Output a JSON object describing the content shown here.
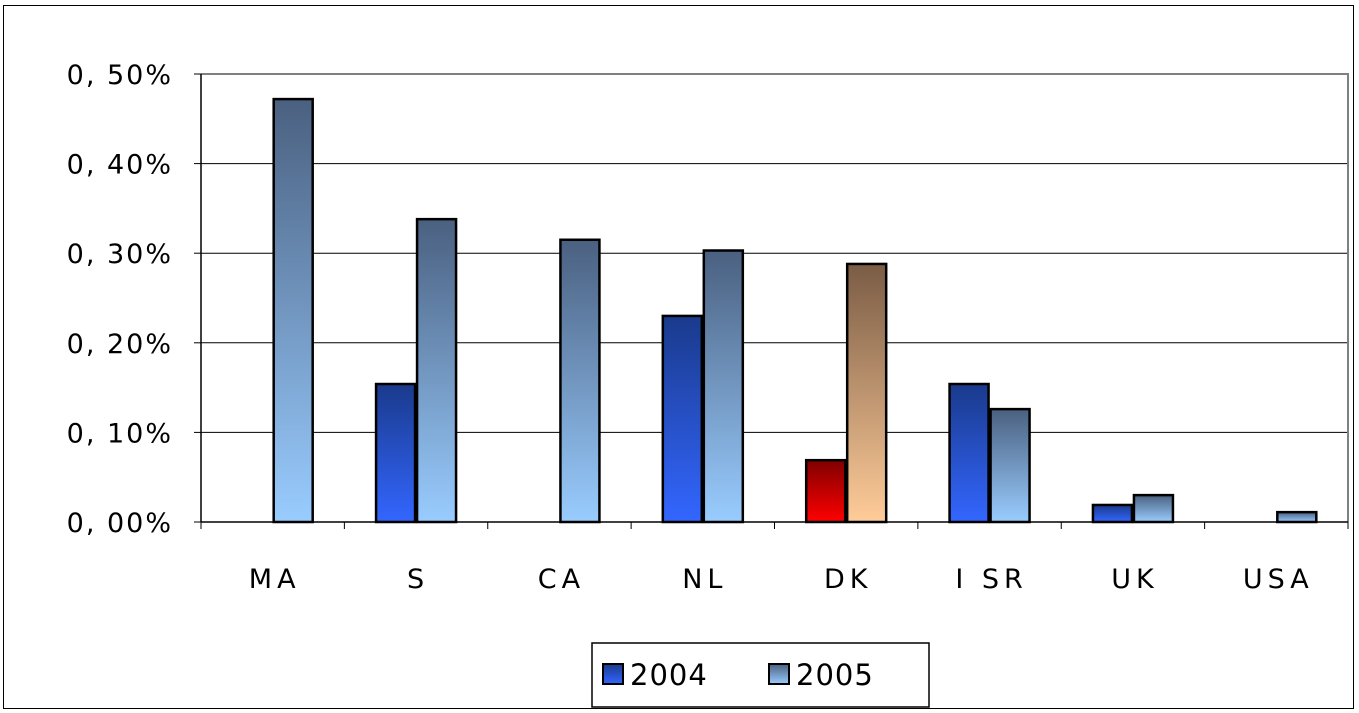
{
  "chart_data": {
    "type": "bar",
    "categories": [
      "MA",
      "S",
      "CA",
      "NL",
      "DK",
      "I SR",
      "UK",
      "USA"
    ],
    "series": [
      {
        "name": "2004",
        "values": [
          0,
          0.154,
          0,
          0.23,
          0.069,
          0.154,
          0.019,
          0
        ]
      },
      {
        "name": "2005",
        "values": [
          0.472,
          0.338,
          0.315,
          0.303,
          0.288,
          0.126,
          0.03,
          0.011
        ]
      }
    ],
    "highlight": {
      "category": "DK",
      "colors": [
        "#e00000",
        "#f7c69a"
      ]
    },
    "ylim": [
      0,
      0.5
    ],
    "yticks": [
      0,
      0.1,
      0.2,
      0.3,
      0.4,
      0.5
    ],
    "ytick_labels": [
      "0, 00%",
      "0, 10%",
      "0, 20%",
      "0, 30%",
      "0, 40%",
      "0, 50%"
    ],
    "grid": true,
    "legend_position": "bottom",
    "colors": {
      "2004_top": "#1a3a8c",
      "2004_bottom": "#3366ff",
      "2005_top": "#4a6080",
      "2005_bottom": "#99ccff",
      "dk_2004_top": "#800000",
      "dk_2004_bottom": "#ff0000",
      "dk_2005_top": "#7a5c45",
      "dk_2005_bottom": "#ffcc99"
    }
  }
}
